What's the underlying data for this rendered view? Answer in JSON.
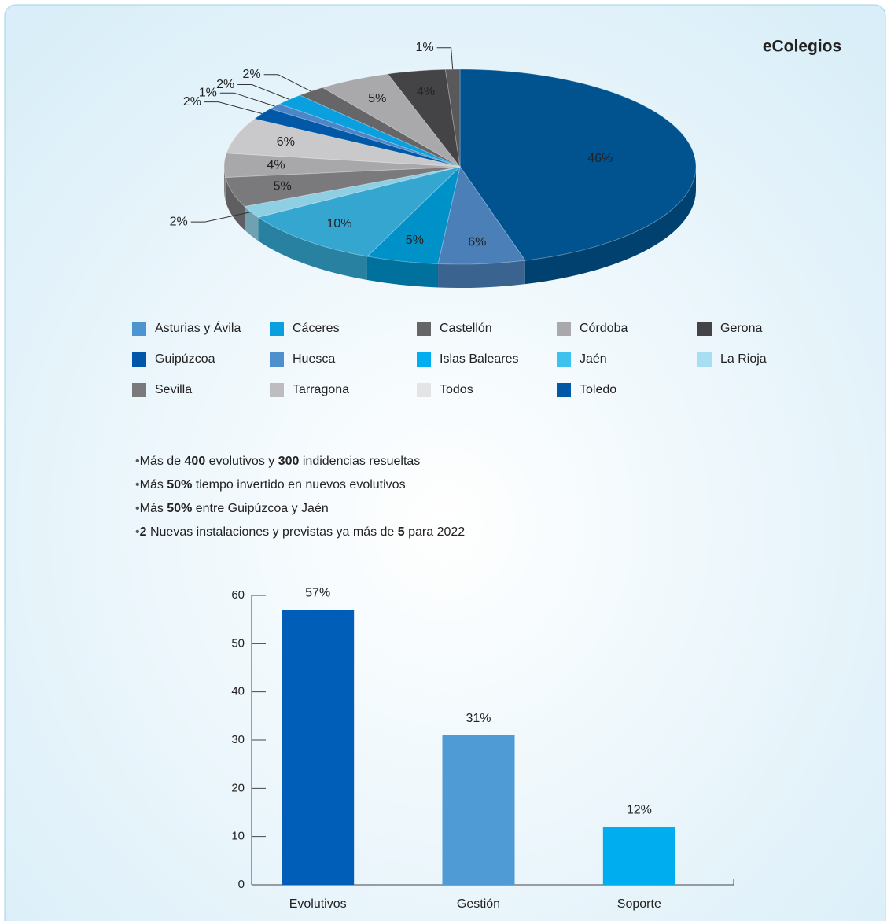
{
  "chart_data": [
    {
      "type": "pie",
      "title": "eColegios",
      "categories": [
        "Guipúzcoa",
        "Huesca",
        "Islas Baleares",
        "Jaén",
        "La Rioja",
        "Sevilla",
        "Tarragona",
        "Todos",
        "Toledo",
        "Asturias y Ávila",
        "Cáceres",
        "Castellón",
        "Córdoba",
        "Gerona",
        null
      ],
      "values": [
        46,
        6,
        5,
        10,
        2,
        5,
        4,
        6,
        2,
        1,
        2,
        2,
        5,
        4,
        1
      ],
      "value_labels": [
        "46%",
        "6%",
        "5%",
        "10%",
        "2%",
        "5%",
        "4%",
        "6%",
        "2%",
        "1%",
        "2%",
        "2%",
        "5%",
        "4%",
        "1%"
      ],
      "colors": [
        "#00538e",
        "#4a7fb8",
        "#0091c9",
        "#35a6d0",
        "#8ecfe3",
        "#7a7a7c",
        "#a8a8aa",
        "#c9c9cb",
        "#0058a6",
        "#4d86c6",
        "#0aa0e0",
        "#666668",
        "#a9a9ab",
        "#444446",
        "#59595b"
      ],
      "legend": {
        "order": [
          "Asturias y Ávila",
          "Cáceres",
          "Castellón",
          "Córdoba",
          "Gerona",
          "Guipúzcoa",
          "Huesca",
          "Islas Baleares",
          "Jaén",
          "La Rioja",
          "Sevilla",
          "Tarragona",
          "Todos",
          "Toledo"
        ],
        "colors": [
          "#4d94d0",
          "#0aa0e0",
          "#666668",
          "#a9a9ab",
          "#444446",
          "#0056a8",
          "#4f8fcc",
          "#00aeef",
          "#3ec1ec",
          "#a8def2",
          "#7a7a7c",
          "#bdbdbf",
          "#e4e4e6",
          "#0058a6"
        ]
      }
    },
    {
      "type": "bar",
      "categories": [
        "Evolutivos",
        "Gestión",
        "Soporte"
      ],
      "values": [
        57,
        31,
        12
      ],
      "value_labels": [
        "57%",
        "31%",
        "12%"
      ],
      "colors": [
        "#005eb8",
        "#4f9bd6",
        "#00aeef"
      ],
      "ylim": [
        0,
        60
      ],
      "yticks": [
        0,
        10,
        20,
        30,
        40,
        50,
        60
      ],
      "grid": false
    }
  ],
  "bullets": [
    [
      {
        "text": "Más de ",
        "bold": false
      },
      {
        "text": "400",
        "bold": true
      },
      {
        "text": " evolutivos y ",
        "bold": false
      },
      {
        "text": "300",
        "bold": true
      },
      {
        "text": " indidencias resueltas",
        "bold": false
      }
    ],
    [
      {
        "text": "Más ",
        "bold": false
      },
      {
        "text": "50%",
        "bold": true
      },
      {
        "text": " tiempo invertido en nuevos evolutivos",
        "bold": false
      }
    ],
    [
      {
        "text": "Más ",
        "bold": false
      },
      {
        "text": "50%",
        "bold": true
      },
      {
        "text": " entre Guipúzcoa y Jaén",
        "bold": false
      }
    ],
    [
      {
        "text": "2",
        "bold": true
      },
      {
        "text": " Nuevas instalaciones y previstas ya más de ",
        "bold": false
      },
      {
        "text": "5",
        "bold": true
      },
      {
        "text": " para 2022",
        "bold": false
      }
    ]
  ]
}
